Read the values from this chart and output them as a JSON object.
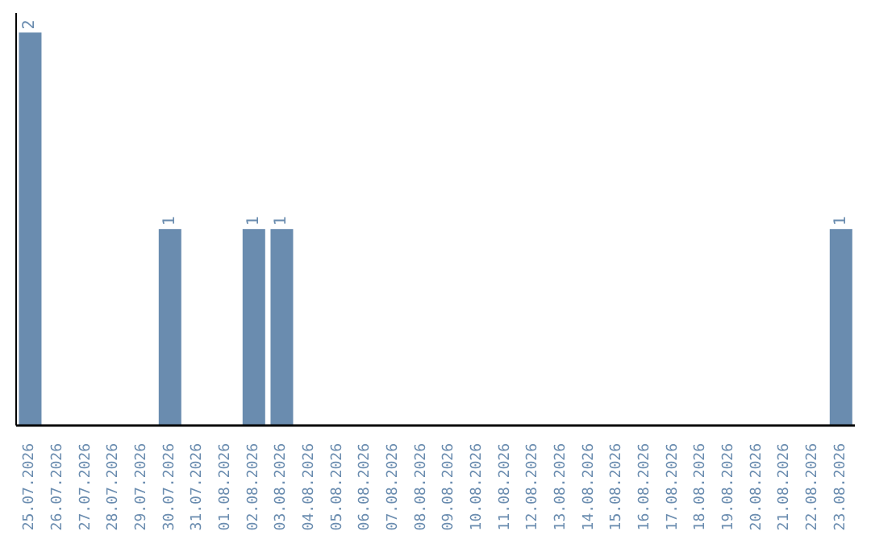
{
  "chart_data": {
    "type": "bar",
    "categories": [
      "25.07.2026",
      "26.07.2026",
      "27.07.2026",
      "28.07.2026",
      "29.07.2026",
      "30.07.2026",
      "31.07.2026",
      "01.08.2026",
      "02.08.2026",
      "03.08.2026",
      "04.08.2026",
      "05.08.2026",
      "06.08.2026",
      "07.08.2026",
      "08.08.2026",
      "09.08.2026",
      "10.08.2026",
      "11.08.2026",
      "12.08.2026",
      "13.08.2026",
      "14.08.2026",
      "15.08.2026",
      "16.08.2026",
      "17.08.2026",
      "18.08.2026",
      "19.08.2026",
      "20.08.2026",
      "21.08.2026",
      "22.08.2026",
      "23.08.2026"
    ],
    "values": [
      2,
      0,
      0,
      0,
      0,
      1,
      0,
      0,
      1,
      1,
      0,
      0,
      0,
      0,
      0,
      0,
      0,
      0,
      0,
      0,
      0,
      0,
      0,
      0,
      0,
      0,
      0,
      0,
      0,
      1
    ],
    "value_labels": [
      "2",
      null,
      null,
      null,
      null,
      "1",
      null,
      null,
      "1",
      "1",
      null,
      null,
      null,
      null,
      null,
      null,
      null,
      null,
      null,
      null,
      null,
      null,
      null,
      null,
      null,
      null,
      null,
      null,
      null,
      "1"
    ],
    "color": "#6a8caf",
    "tick_labels": "x",
    "grid": false,
    "legend": false
  }
}
